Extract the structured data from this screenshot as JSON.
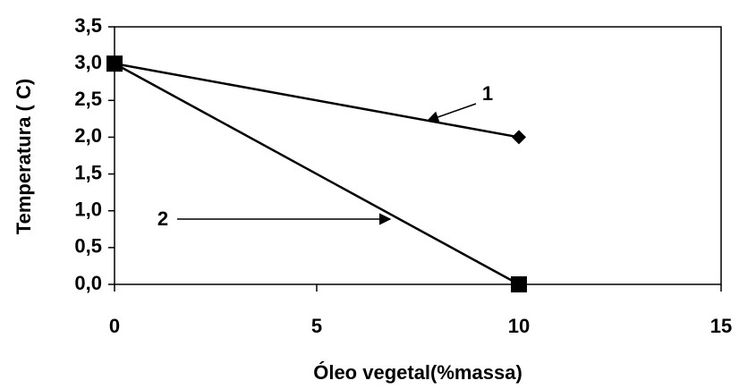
{
  "chart_data": {
    "type": "line",
    "x_label": "Óleo vegetal(%massa)",
    "y_label": "Temperatura ( C)",
    "x": [
      0,
      10
    ],
    "series": [
      {
        "name": "1",
        "color": "#000000",
        "marker": "diamond",
        "values": [
          3,
          2
        ]
      },
      {
        "name": "2",
        "color": "#000000",
        "marker": "square",
        "values": [
          3,
          0
        ]
      }
    ],
    "xlim": [
      0,
      15
    ],
    "xticks": [
      0,
      5,
      10,
      15
    ],
    "ylim": [
      0,
      3.5
    ],
    "yticks": [
      {
        "value": 0,
        "label": "0,0"
      },
      {
        "value": 0.5,
        "label": "0,5"
      },
      {
        "value": 1,
        "label": "1,0"
      },
      {
        "value": 1.5,
        "label": "1,5"
      },
      {
        "value": 2,
        "label": "2,0"
      },
      {
        "value": 2.5,
        "label": "2,5"
      },
      {
        "value": 3,
        "label": "3,0"
      },
      {
        "value": 3.5,
        "label": "3,5"
      }
    ]
  }
}
